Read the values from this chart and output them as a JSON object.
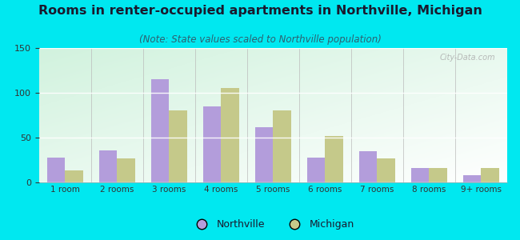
{
  "title": "Rooms in renter-occupied apartments in Northville, Michigan",
  "subtitle": "(Note: State values scaled to Northville population)",
  "categories": [
    "1 room",
    "2 rooms",
    "3 rooms",
    "4 rooms",
    "5 rooms",
    "6 rooms",
    "7 rooms",
    "8 rooms",
    "9+ rooms"
  ],
  "northville": [
    28,
    36,
    115,
    85,
    62,
    28,
    35,
    16,
    8
  ],
  "michigan": [
    13,
    27,
    80,
    105,
    80,
    52,
    27,
    16,
    16
  ],
  "northville_color": "#b39ddb",
  "michigan_color": "#c5c98a",
  "bg_outer": "#00e8f0",
  "title_fontsize": 11.5,
  "subtitle_fontsize": 8.5,
  "ylim": [
    0,
    150
  ],
  "yticks": [
    0,
    50,
    100,
    150
  ],
  "watermark": "City-Data.com",
  "bar_width": 0.35,
  "legend_northville": "Northville",
  "legend_michigan": "Michigan",
  "title_color": "#1a1a2e",
  "subtitle_color": "#2e6070",
  "tick_color": "#333333"
}
